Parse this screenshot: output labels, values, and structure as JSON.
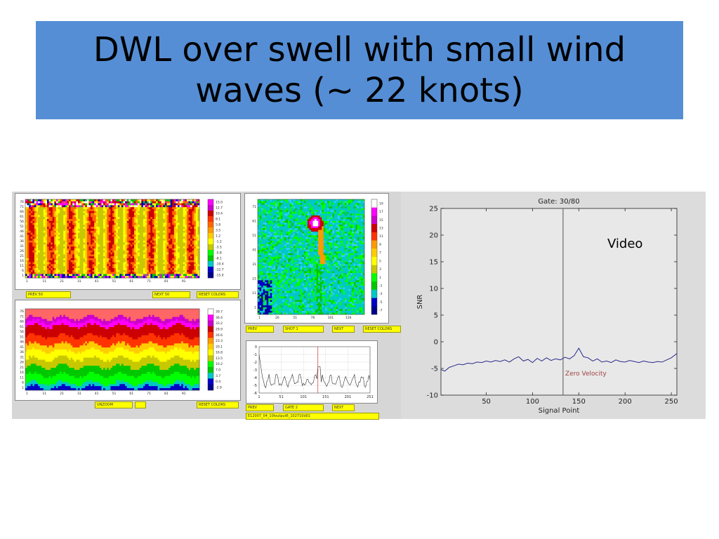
{
  "slide": {
    "title_line1": "DWL over swell with small wind",
    "title_line2": "waves (~ 22 knots)"
  },
  "heatmap_top": {
    "yticks": [
      "76",
      "71",
      "66",
      "61",
      "56",
      "51",
      "46",
      "41",
      "36",
      "31",
      "26",
      "21",
      "16",
      "11",
      "6",
      "1"
    ],
    "xticks": [
      "1",
      "11",
      "21",
      "31",
      "41",
      "51",
      "61",
      "71",
      "81",
      "91"
    ],
    "colorbar": [
      "15.0",
      "12.7",
      "10.4",
      "8.1",
      "5.8",
      "3.5",
      "1.2",
      "-1.2",
      "-3.5",
      "-5.8",
      "-8.1",
      "-10.4",
      "-12.7",
      "-15.0"
    ],
    "buttons": [
      "PREV 50",
      "NEXT 50",
      "RESET COLORS"
    ]
  },
  "heatmap_bottom": {
    "yticks": [
      "76",
      "71",
      "66",
      "61",
      "56",
      "51",
      "46",
      "41",
      "36",
      "31",
      "26",
      "21",
      "16",
      "11",
      "6",
      "1"
    ],
    "xticks": [
      "1",
      "11",
      "21",
      "31",
      "41",
      "51",
      "61",
      "71",
      "81",
      "91"
    ],
    "colorbar": [
      "39.7",
      "36.4",
      "33.2",
      "29.9",
      "26.6",
      "23.3",
      "20.1",
      "16.8",
      "13.5",
      "10.2",
      "7.0",
      "3.7",
      "0.4",
      "-2.9"
    ],
    "buttons": [
      "UNZOOM",
      "",
      "RESET COLORS"
    ]
  },
  "heatmap_mid": {
    "yticks": [
      "71",
      "61",
      "51",
      "41",
      "31",
      "21",
      "11",
      "1"
    ],
    "xticks": [
      "1",
      "26",
      "51",
      "76",
      "101",
      "126"
    ],
    "colorbar": [
      "19",
      "17",
      "15",
      "13",
      "11",
      "9",
      "7",
      "5",
      "3",
      "1",
      "-1",
      "-3",
      "-5",
      "-7"
    ],
    "buttons": [
      "PREV",
      "SHOT 1",
      "NEXT",
      "RESET COLORS"
    ]
  },
  "small_line": {
    "yticks": [
      "0",
      "-1",
      "-2",
      "-3",
      "-4",
      "-5",
      "-6"
    ],
    "xticks": [
      "1",
      "51",
      "101",
      "151",
      "201",
      "251"
    ],
    "buttons": [
      "PREV",
      "GATE 2",
      "NEXT"
    ],
    "filename": "E12007_04_10loutput6_102710d01"
  },
  "snr_plot": {
    "title": "Gate: 30/80",
    "ylabel": "SNR",
    "xlabel": "Signal Point",
    "video_label": "Video",
    "marker_label": "Zero Velocity",
    "line_color": "#2a2a8a",
    "marker_color": "#555555"
  },
  "chart_data": {
    "type": "line",
    "title": "Gate: 30/80",
    "xlabel": "Signal Point",
    "ylabel": "SNR",
    "xlim": [
      1,
      256
    ],
    "ylim": [
      -10,
      25
    ],
    "xticks": [
      50,
      100,
      150,
      200,
      250
    ],
    "yticks": [
      -10,
      -5,
      0,
      5,
      10,
      15,
      20,
      25
    ],
    "grid": false,
    "x": [
      1,
      5,
      10,
      15,
      20,
      25,
      30,
      35,
      40,
      45,
      50,
      55,
      60,
      65,
      70,
      75,
      80,
      85,
      90,
      95,
      100,
      105,
      110,
      115,
      120,
      125,
      130,
      135,
      140,
      145,
      150,
      155,
      160,
      165,
      170,
      175,
      180,
      185,
      190,
      195,
      200,
      205,
      210,
      215,
      220,
      225,
      230,
      235,
      240,
      245,
      250,
      256
    ],
    "y": [
      -5.2,
      -5.5,
      -4.8,
      -4.5,
      -4.2,
      -4.3,
      -4.0,
      -4.1,
      -3.8,
      -3.9,
      -3.6,
      -3.8,
      -3.5,
      -3.7,
      -3.4,
      -3.8,
      -3.2,
      -2.8,
      -3.6,
      -3.3,
      -3.9,
      -3.1,
      -3.6,
      -3.0,
      -3.5,
      -3.2,
      -3.4,
      -2.9,
      -3.2,
      -2.6,
      -1.2,
      -2.8,
      -3.0,
      -3.6,
      -3.2,
      -3.8,
      -3.6,
      -3.9,
      -3.4,
      -3.7,
      -3.8,
      -3.5,
      -3.7,
      -3.9,
      -3.6,
      -3.8,
      -3.9,
      -3.7,
      -3.8,
      -3.4,
      -3.0,
      -2.2
    ],
    "vline_x": 133
  }
}
